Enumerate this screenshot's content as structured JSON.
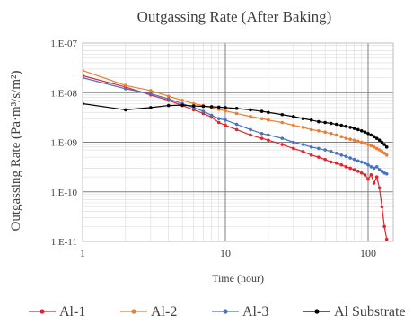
{
  "chart_data": {
    "type": "line",
    "title": "Outgassing Rate (After Baking)",
    "xlabel": "Time (hour)",
    "ylabel": "Outgassing Rate (Pa·m³/s/m²)",
    "x_scale": "log",
    "y_scale": "log",
    "xlim": [
      1,
      150
    ],
    "ylim": [
      1e-11,
      1e-07
    ],
    "x_ticks": [
      {
        "value": 1,
        "label": "1"
      },
      {
        "value": 10,
        "label": "10"
      },
      {
        "value": 100,
        "label": "100"
      }
    ],
    "y_ticks": [
      {
        "value": 1e-07,
        "label": "1.E-07"
      },
      {
        "value": 1e-08,
        "label": "1.E-08"
      },
      {
        "value": 1e-09,
        "label": "1.E-09"
      },
      {
        "value": 1e-10,
        "label": "1.E-10"
      },
      {
        "value": 1e-11,
        "label": "1.E-11"
      }
    ],
    "grid": true,
    "legend_position": "bottom",
    "series": [
      {
        "name": "Al-1",
        "color": "#e8212a",
        "points": [
          [
            1,
            2.2e-08
          ],
          [
            2,
            1.3e-08
          ],
          [
            3,
            9e-09
          ],
          [
            4,
            7e-09
          ],
          [
            5,
            5.5e-09
          ],
          [
            6,
            4.5e-09
          ],
          [
            7,
            3.8e-09
          ],
          [
            8,
            3.2e-09
          ],
          [
            9,
            2.5e-09
          ],
          [
            10,
            2.2e-09
          ],
          [
            12,
            1.8e-09
          ],
          [
            15,
            1.4e-09
          ],
          [
            18,
            1.2e-09
          ],
          [
            20,
            1.1e-09
          ],
          [
            25,
            9e-10
          ],
          [
            30,
            7.5e-10
          ],
          [
            35,
            6.5e-10
          ],
          [
            40,
            5.5e-10
          ],
          [
            45,
            5e-10
          ],
          [
            50,
            4.5e-10
          ],
          [
            55,
            4e-10
          ],
          [
            60,
            3.8e-10
          ],
          [
            65,
            3.5e-10
          ],
          [
            70,
            3.2e-10
          ],
          [
            75,
            3e-10
          ],
          [
            80,
            2.8e-10
          ],
          [
            85,
            2.6e-10
          ],
          [
            90,
            2.4e-10
          ],
          [
            95,
            2.2e-10
          ],
          [
            100,
            1.8e-10
          ],
          [
            105,
            2.2e-10
          ],
          [
            110,
            1.5e-10
          ],
          [
            115,
            2e-10
          ],
          [
            120,
            1.2e-10
          ],
          [
            125,
            5e-11
          ],
          [
            130,
            2e-11
          ],
          [
            135,
            1.1e-11
          ]
        ]
      },
      {
        "name": "Al-2",
        "color": "#ed7d31",
        "points": [
          [
            1,
            2.8e-08
          ],
          [
            2,
            1.4e-08
          ],
          [
            3,
            1.1e-08
          ],
          [
            4,
            8.5e-09
          ],
          [
            5,
            7e-09
          ],
          [
            6,
            6e-09
          ],
          [
            7,
            5.5e-09
          ],
          [
            8,
            5e-09
          ],
          [
            9,
            4.6e-09
          ],
          [
            10,
            4.3e-09
          ],
          [
            12,
            3.8e-09
          ],
          [
            15,
            3.3e-09
          ],
          [
            18,
            3e-09
          ],
          [
            20,
            2.8e-09
          ],
          [
            25,
            2.5e-09
          ],
          [
            30,
            2.2e-09
          ],
          [
            35,
            2e-09
          ],
          [
            40,
            1.8e-09
          ],
          [
            45,
            1.7e-09
          ],
          [
            50,
            1.6e-09
          ],
          [
            55,
            1.5e-09
          ],
          [
            60,
            1.4e-09
          ],
          [
            65,
            1.3e-09
          ],
          [
            70,
            1.2e-09
          ],
          [
            75,
            1.15e-09
          ],
          [
            80,
            1.1e-09
          ],
          [
            85,
            1.05e-09
          ],
          [
            90,
            1e-09
          ],
          [
            95,
            9.5e-10
          ],
          [
            100,
            9e-10
          ],
          [
            105,
            8.5e-10
          ],
          [
            110,
            8e-10
          ],
          [
            115,
            7.5e-10
          ],
          [
            120,
            7e-10
          ],
          [
            125,
            6.5e-10
          ],
          [
            130,
            6e-10
          ],
          [
            135,
            5.5e-10
          ]
        ]
      },
      {
        "name": "Al-3",
        "color": "#4472c4",
        "points": [
          [
            1,
            2e-08
          ],
          [
            2,
            1.2e-08
          ],
          [
            3,
            9.5e-09
          ],
          [
            4,
            7.5e-09
          ],
          [
            5,
            6e-09
          ],
          [
            6,
            5e-09
          ],
          [
            7,
            4.2e-09
          ],
          [
            8,
            3.5e-09
          ],
          [
            9,
            3e-09
          ],
          [
            10,
            2.8e-09
          ],
          [
            12,
            2.3e-09
          ],
          [
            15,
            1.8e-09
          ],
          [
            18,
            1.5e-09
          ],
          [
            20,
            1.4e-09
          ],
          [
            25,
            1.2e-09
          ],
          [
            30,
            1e-09
          ],
          [
            35,
            9e-10
          ],
          [
            40,
            8e-10
          ],
          [
            45,
            7.5e-10
          ],
          [
            50,
            7e-10
          ],
          [
            55,
            6.5e-10
          ],
          [
            60,
            6e-10
          ],
          [
            65,
            5.5e-10
          ],
          [
            70,
            5.2e-10
          ],
          [
            75,
            4.8e-10
          ],
          [
            80,
            4.5e-10
          ],
          [
            85,
            4.2e-10
          ],
          [
            90,
            4e-10
          ],
          [
            95,
            3.8e-10
          ],
          [
            100,
            3.5e-10
          ],
          [
            105,
            3.2e-10
          ],
          [
            110,
            3e-10
          ],
          [
            115,
            3.2e-10
          ],
          [
            120,
            2.8e-10
          ],
          [
            125,
            2.6e-10
          ],
          [
            130,
            2.4e-10
          ],
          [
            135,
            2.3e-10
          ]
        ]
      },
      {
        "name": "Al Substrate",
        "color": "#000000",
        "points": [
          [
            1,
            6e-09
          ],
          [
            2,
            4.5e-09
          ],
          [
            3,
            5e-09
          ],
          [
            4,
            5.5e-09
          ],
          [
            5,
            5.6e-09
          ],
          [
            6,
            5.4e-09
          ],
          [
            7,
            5.3e-09
          ],
          [
            8,
            5.2e-09
          ],
          [
            9,
            5.1e-09
          ],
          [
            10,
            5e-09
          ],
          [
            12,
            4.8e-09
          ],
          [
            15,
            4.5e-09
          ],
          [
            18,
            4.2e-09
          ],
          [
            20,
            4e-09
          ],
          [
            25,
            3.6e-09
          ],
          [
            30,
            3.3e-09
          ],
          [
            35,
            3e-09
          ],
          [
            40,
            2.8e-09
          ],
          [
            45,
            2.6e-09
          ],
          [
            50,
            2.5e-09
          ],
          [
            55,
            2.4e-09
          ],
          [
            60,
            2.3e-09
          ],
          [
            65,
            2.2e-09
          ],
          [
            70,
            2.1e-09
          ],
          [
            75,
            2e-09
          ],
          [
            80,
            1.9e-09
          ],
          [
            85,
            1.8e-09
          ],
          [
            90,
            1.7e-09
          ],
          [
            95,
            1.6e-09
          ],
          [
            100,
            1.5e-09
          ],
          [
            105,
            1.4e-09
          ],
          [
            110,
            1.3e-09
          ],
          [
            115,
            1.2e-09
          ],
          [
            120,
            1.1e-09
          ],
          [
            125,
            1e-09
          ],
          [
            130,
            9e-10
          ],
          [
            135,
            8e-10
          ]
        ]
      }
    ]
  }
}
